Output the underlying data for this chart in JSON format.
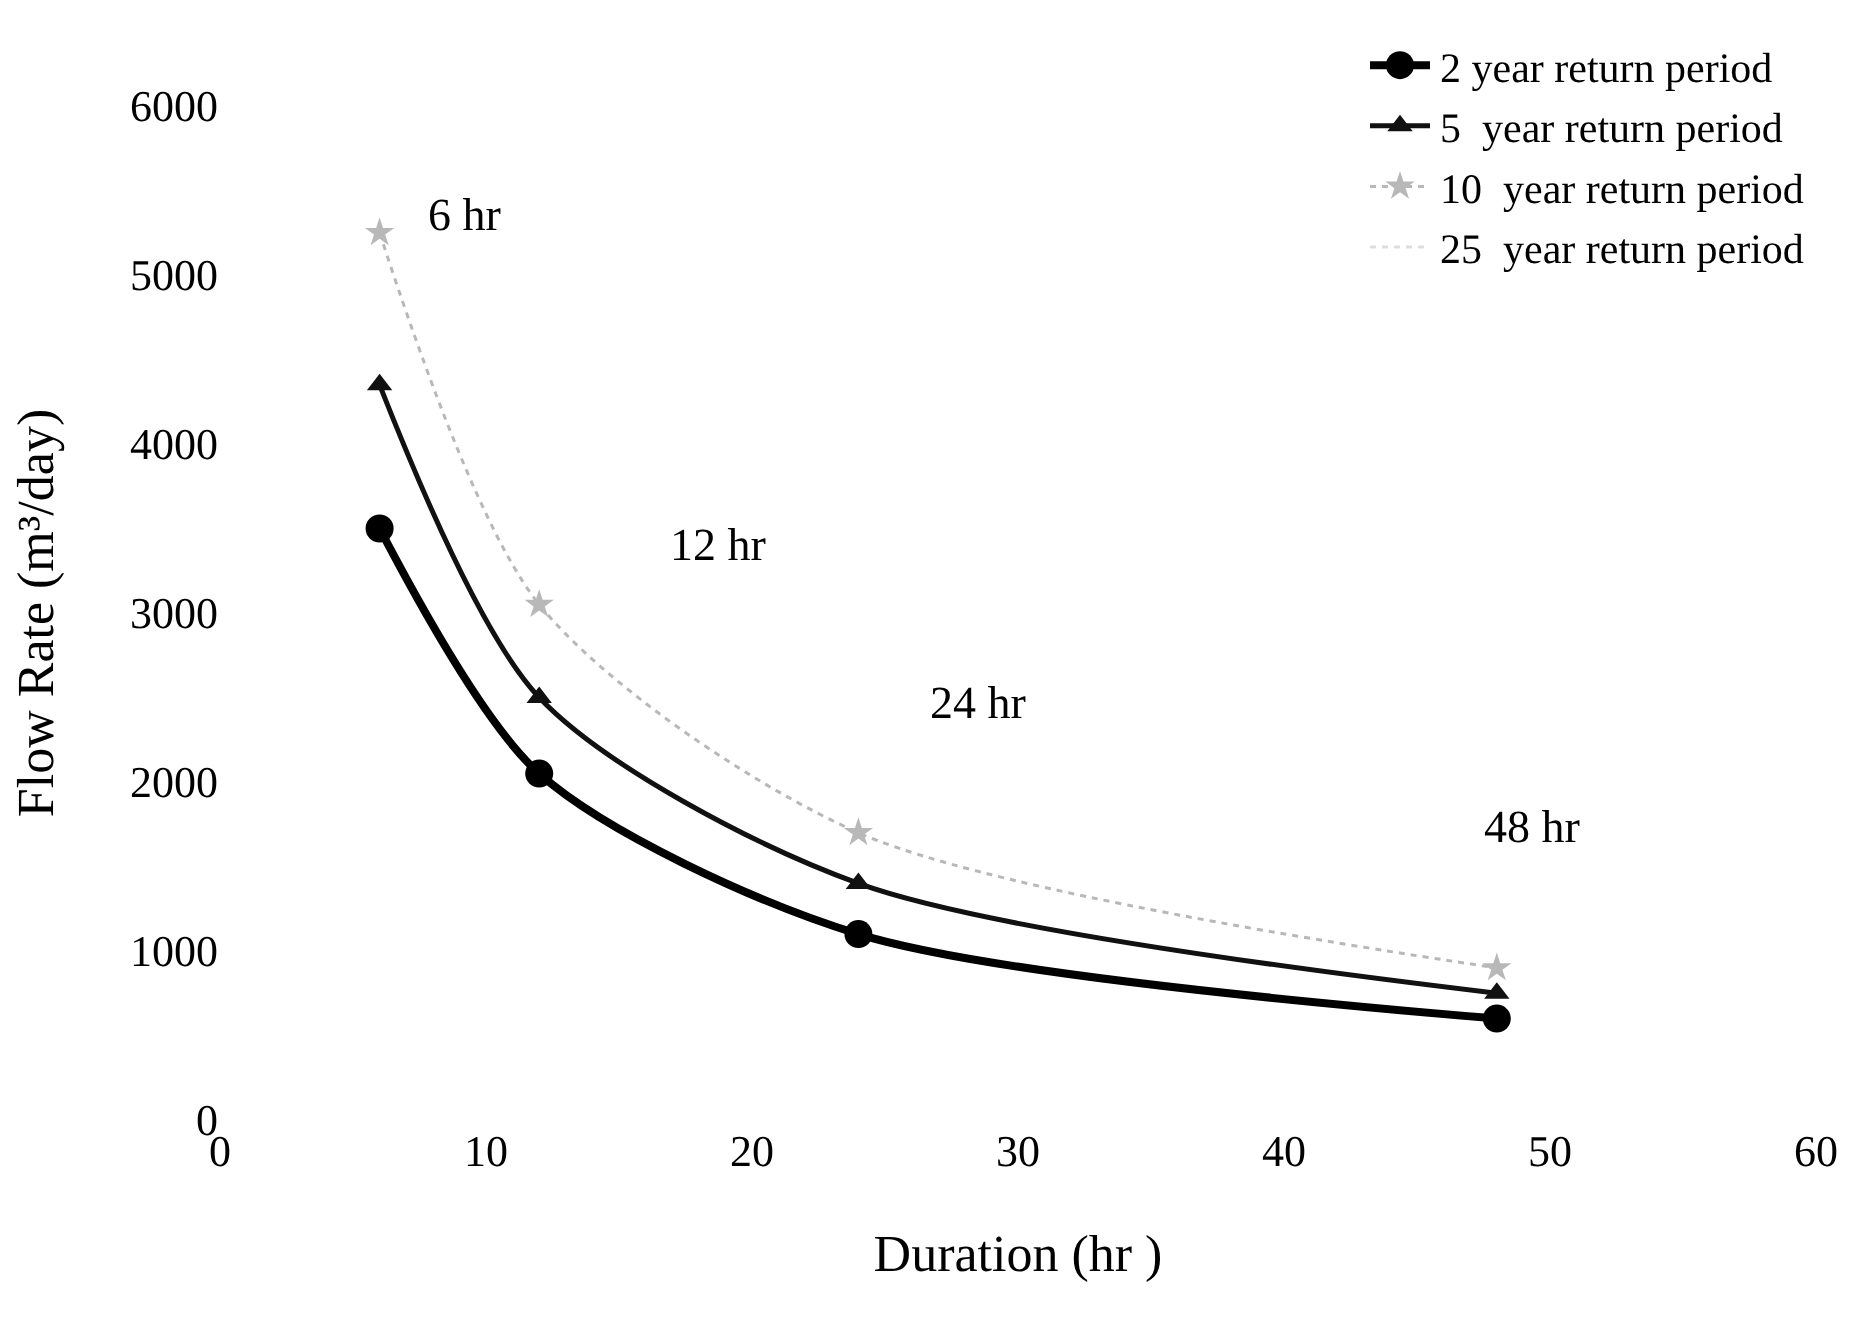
{
  "chart_data": {
    "type": "line",
    "xlabel": "Duration (hr )",
    "ylabel": "Flow Rate (m³/day)",
    "x": [
      6,
      12,
      24,
      48
    ],
    "series": [
      {
        "name": "2 year return period",
        "color": "#000000",
        "values": [
          3500,
          2050,
          1100,
          600
        ],
        "marker": "circle",
        "line_style": "solid"
      },
      {
        "name": "5  year return period",
        "color": "#111111",
        "values": [
          4350,
          2500,
          1400,
          750
        ],
        "marker": "triangle",
        "line_style": "solid"
      },
      {
        "name": "10  year return period",
        "color": "#b8b8b8",
        "values": [
          5250,
          3050,
          1700,
          900
        ],
        "marker": "star",
        "line_style": "dotted"
      },
      {
        "name": "25  year return period",
        "color": "#dddddd",
        "values": [
          null,
          null,
          null,
          null
        ],
        "marker": "none",
        "line_style": "dotted"
      }
    ],
    "xlim": [
      0,
      60
    ],
    "xticks": [
      0,
      10,
      20,
      30,
      40,
      50,
      60
    ],
    "ylim": [
      0,
      6000
    ],
    "yticks": [
      0,
      1000,
      2000,
      3000,
      4000,
      5000,
      6000
    ],
    "legend": "top right",
    "annotations": [
      "6 hr",
      "12 hr",
      "24 hr",
      "48 hr"
    ]
  }
}
